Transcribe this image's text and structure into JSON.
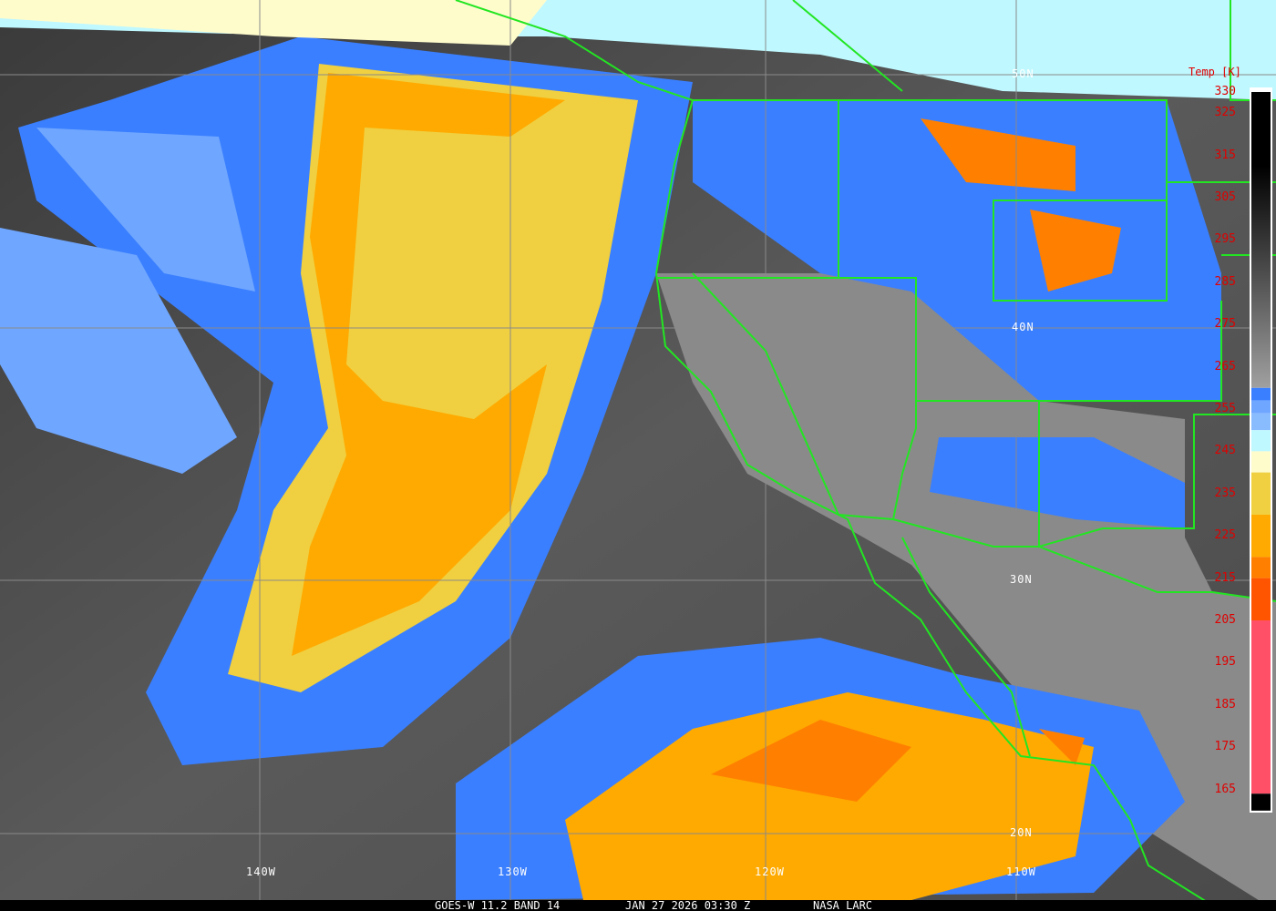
{
  "caption": {
    "satellite": "GOES-W 11.2 BAND 14",
    "datetime": "JAN 27 2026 03:30 Z",
    "source": "NASA LARC"
  },
  "grid_labels": {
    "lon": [
      "140W",
      "130W",
      "120W",
      "110W"
    ],
    "lat": [
      "50N",
      "40N",
      "30N",
      "20N"
    ]
  },
  "legend": {
    "title": "Temp [K]",
    "ticks": [
      "330",
      "325",
      "315",
      "305",
      "295",
      "285",
      "275",
      "265",
      "255",
      "245",
      "235",
      "225",
      "215",
      "205",
      "195",
      "185",
      "175",
      "165"
    ],
    "segments": [
      {
        "from": 330,
        "to": 260,
        "color_start": "#000000",
        "color_end": "#a0a0a0"
      },
      {
        "from": 260,
        "to": 257,
        "color": "#3a7fff"
      },
      {
        "from": 257,
        "to": 254,
        "color": "#6fa6ff"
      },
      {
        "from": 254,
        "to": 250,
        "color": "#88bcff"
      },
      {
        "from": 250,
        "to": 245,
        "color": "#bff8ff"
      },
      {
        "from": 245,
        "to": 240,
        "color": "#fffccc"
      },
      {
        "from": 240,
        "to": 230,
        "color": "#f0d040"
      },
      {
        "from": 230,
        "to": 220,
        "color": "#ffaa00"
      },
      {
        "from": 220,
        "to": 215,
        "color": "#ff8000"
      },
      {
        "from": 215,
        "to": 205,
        "color": "#ff5500"
      },
      {
        "from": 205,
        "to": 164,
        "color": "#ff5068"
      },
      {
        "from": 164,
        "to": 160,
        "color": "#000000"
      }
    ]
  },
  "colors": {
    "boundaries": "#22e622",
    "grid": "#8a8a8a",
    "labels": "#e00000"
  }
}
